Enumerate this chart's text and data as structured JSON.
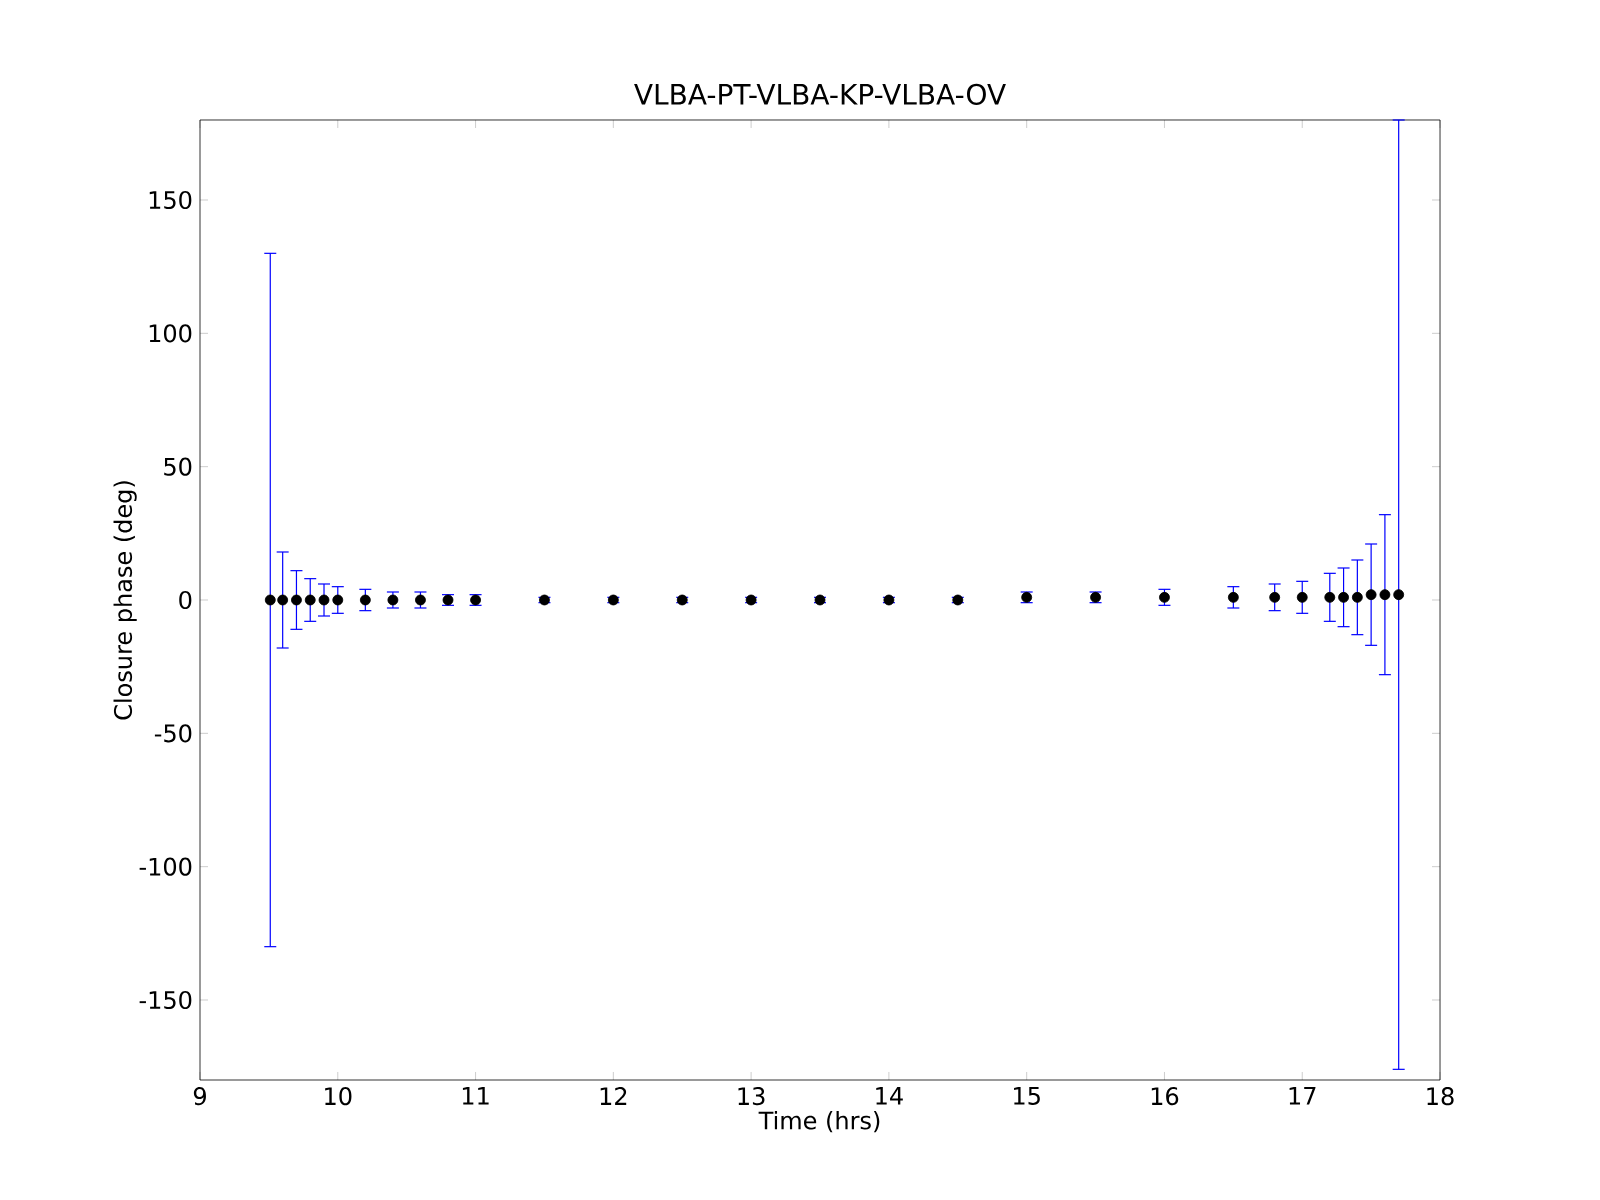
{
  "chart_data": {
    "type": "scatter",
    "title": "VLBA-PT-VLBA-KP-VLBA-OV",
    "xlabel": "Time (hrs)",
    "ylabel": "Closure phase (deg)",
    "xlim": [
      9,
      18
    ],
    "xticks": [
      9,
      10,
      11,
      12,
      13,
      14,
      15,
      16,
      17,
      18
    ],
    "ylim": [
      -180,
      180
    ],
    "yticks": [
      -150,
      -100,
      -50,
      0,
      50,
      100,
      150
    ],
    "series": [
      {
        "color": "#000000",
        "x": [
          9.51,
          9.6,
          9.7,
          9.8,
          9.9,
          10.0,
          10.2,
          10.4,
          10.6,
          10.8,
          11,
          11.5,
          12,
          12.5,
          13,
          13.5,
          14,
          14.5,
          15,
          15.5,
          16,
          16.5,
          16.8,
          17.0,
          17.2,
          17.3,
          17.4,
          17.5,
          17.6,
          17.7
        ],
        "values": [
          0,
          0,
          0,
          0,
          0,
          0,
          0,
          0,
          0,
          0,
          0,
          0,
          0,
          0,
          0,
          0,
          0,
          0,
          1,
          1,
          1,
          1,
          1,
          1,
          1,
          1,
          1,
          2,
          2,
          2
        ],
        "errors": [
          130,
          18,
          11,
          8,
          6,
          5,
          4,
          3,
          3,
          2,
          2,
          1,
          1,
          1,
          1,
          1,
          1,
          1,
          2,
          2,
          3,
          4,
          5,
          6,
          9,
          11,
          14,
          19,
          30,
          178
        ]
      }
    ]
  }
}
